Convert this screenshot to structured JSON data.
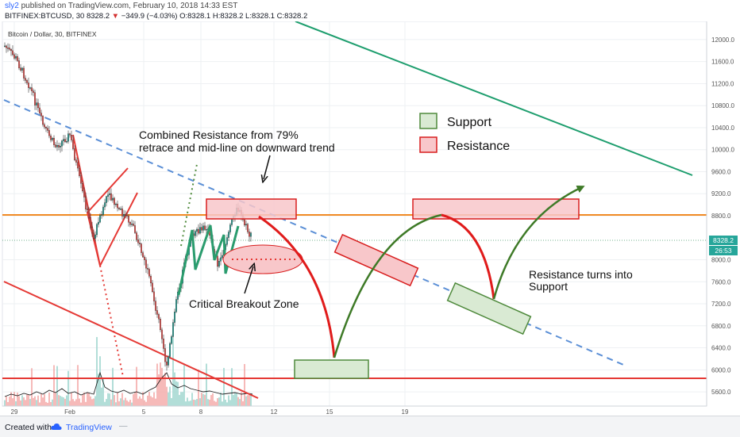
{
  "header": {
    "user": "sly2",
    "published": "published on TradingView.com, February 10, 2018 14:33 EST",
    "symbol_line": "BITFINEX:BTCUSD, 30",
    "last_price": "8328.2",
    "change_arrow": "▼",
    "change": "−349.9 (−4.03%)",
    "ohlc": "O:8328.1 H:8328.2 L:8328.1 C:8328.2"
  },
  "chart_title": "Bitcoin / Dollar, 30, BITFINEX",
  "price_label": "8328.2",
  "countdown_label": "26:53",
  "legend": {
    "support": "Support",
    "resistance": "Resistance"
  },
  "annotations": {
    "combined_resistance_line1": "Combined Resistance from 79%",
    "combined_resistance_line2": "retrace and mid-line on downward trend",
    "critical_breakout": "Critical Breakout Zone",
    "resistance_support_line1": "Resistance turns into",
    "resistance_support_line2": "Support"
  },
  "footer": {
    "created_with": "Created with",
    "brand": "TradingView",
    "trailing": "—"
  },
  "colors": {
    "support_fill": "#d9ead3",
    "support_stroke": "#4f8a3c",
    "resistance_fill": "#f8c7ca",
    "resistance_stroke": "#d81e1e",
    "orange_level": "#f08a24",
    "red_level": "#e53935",
    "teal_trend": "#1e9e6e",
    "blue_dashed": "#5b8fd6",
    "green_path": "#3e7a27"
  },
  "chart_data": {
    "type": "candlestick",
    "title": "Bitcoin / Dollar, 30, BITFINEX",
    "x_tick_labels": [
      "29",
      "Feb",
      "5",
      "8",
      "12",
      "15",
      "19"
    ],
    "y_tick_labels": [
      "12000.0",
      "11600.0",
      "11200.0",
      "10800.0",
      "10400.0",
      "10000.0",
      "9600.0",
      "9200.0",
      "8800.0",
      "8000.0",
      "7600.0",
      "7200.0",
      "6800.0",
      "6400.0",
      "6000.0",
      "5600.0"
    ],
    "ylim": [
      5250,
      12200
    ],
    "last_price": 8328.2,
    "horizontal_levels": [
      {
        "name": "orange resistance level",
        "value": 8800
      },
      {
        "name": "red support level",
        "value": 5870
      }
    ],
    "close_path_approx": [
      {
        "t": "Jan 28",
        "close": 11900
      },
      {
        "t": "Jan 29",
        "close": 11400
      },
      {
        "t": "Jan 30",
        "close": 10600
      },
      {
        "t": "Jan 31",
        "close": 10100
      },
      {
        "t": "Feb 1",
        "close": 10200
      },
      {
        "t": "Feb 2",
        "close": 8700
      },
      {
        "t": "Feb 3",
        "close": 9200
      },
      {
        "t": "Feb 4",
        "close": 8200
      },
      {
        "t": "Feb 5",
        "close": 7000
      },
      {
        "t": "Feb 6",
        "close": 6100
      },
      {
        "t": "Feb 7",
        "close": 7700
      },
      {
        "t": "Feb 8",
        "close": 8300
      },
      {
        "t": "Feb 9",
        "close": 8600
      },
      {
        "t": "Feb 10",
        "close": 8328
      }
    ]
  }
}
